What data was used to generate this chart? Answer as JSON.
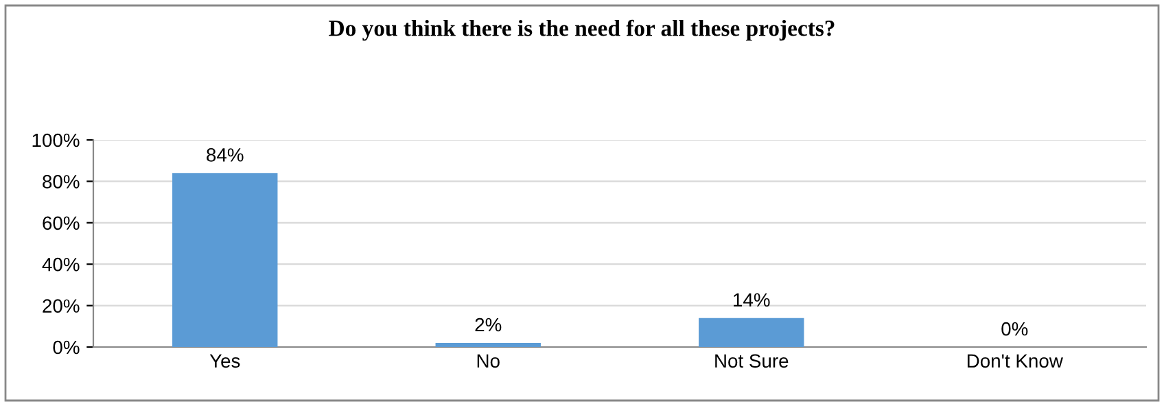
{
  "chart_data": {
    "type": "bar",
    "title": "Do you think there is the need for all these projects?",
    "categories": [
      "Yes",
      "No",
      "Not Sure",
      "Don't Know"
    ],
    "values": [
      84,
      2,
      14,
      0
    ],
    "color": "#5b9bd5",
    "value_labels": [
      "84%",
      "2%",
      "14%",
      "0%"
    ],
    "ylim": [
      0,
      100
    ],
    "yticks": [
      {
        "value": 0,
        "label": "0%"
      },
      {
        "value": 20,
        "label": "20%"
      },
      {
        "value": 40,
        "label": "40%"
      },
      {
        "value": 60,
        "label": "60%"
      },
      {
        "value": 80,
        "label": "80%"
      },
      {
        "value": 100,
        "label": "100%"
      }
    ],
    "grid": "y",
    "legend": false
  }
}
